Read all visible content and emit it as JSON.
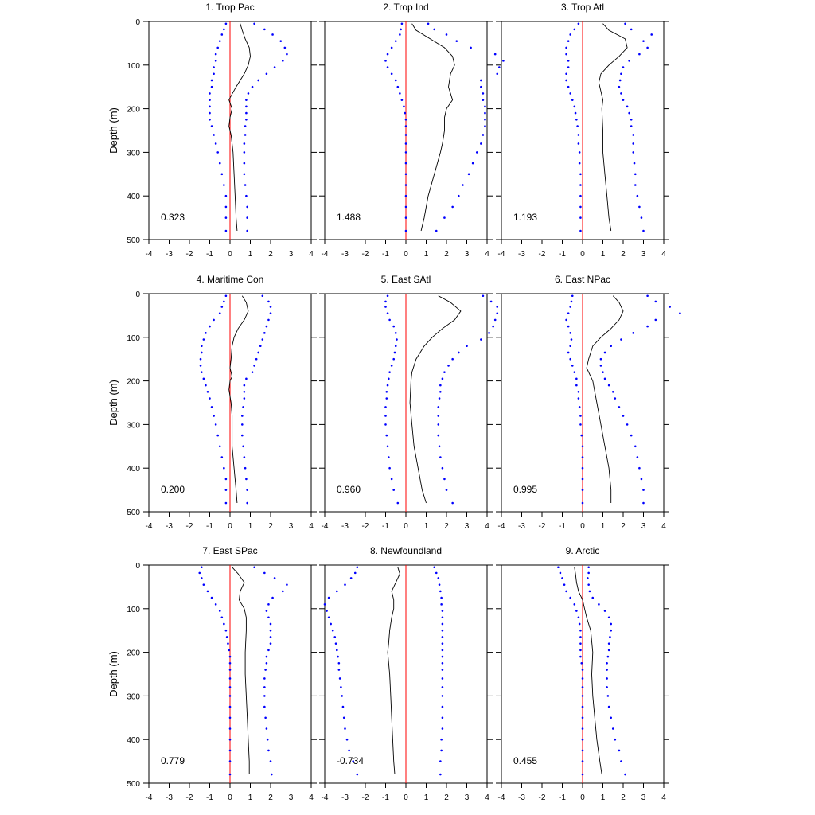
{
  "chart_data": {
    "type": "line",
    "ylabel": "Depth (m)",
    "xlim": [
      -4,
      4
    ],
    "ylim": [
      0,
      500
    ],
    "y_inverted": true,
    "xticks": [
      "-4",
      "-3",
      "-2",
      "-1",
      "0",
      "1",
      "2",
      "3",
      "4"
    ],
    "yticks": [
      "0",
      "100",
      "200",
      "300",
      "400",
      "500"
    ],
    "zero_line_color": "#ff0000",
    "line_color": "#000000",
    "dot_color": "#0000ff",
    "panels": [
      {
        "title": "1. Trop Pac",
        "stat": "0.323",
        "depth_line": [
          5,
          20,
          40,
          60,
          80,
          100,
          120,
          150,
          175,
          180,
          200,
          220,
          240,
          260,
          280,
          300,
          350,
          400,
          450,
          480
        ],
        "line": [
          0.5,
          0.6,
          0.75,
          0.95,
          1.0,
          0.9,
          0.7,
          0.3,
          0.0,
          -0.05,
          0.1,
          0.0,
          -0.05,
          0.05,
          0.1,
          0.15,
          0.2,
          0.25,
          0.3,
          0.35
        ],
        "depth_dots": [
          5,
          18,
          30,
          45,
          60,
          75,
          90,
          105,
          120,
          135,
          150,
          165,
          180,
          195,
          210,
          225,
          240,
          260,
          280,
          300,
          325,
          350,
          375,
          400,
          425,
          450,
          480
        ],
        "lower": [
          -0.2,
          -0.3,
          -0.4,
          -0.5,
          -0.6,
          -0.7,
          -0.7,
          -0.8,
          -0.8,
          -0.9,
          -0.9,
          -1.0,
          -1.0,
          -1.0,
          -1.0,
          -1.0,
          -0.9,
          -0.8,
          -0.7,
          -0.6,
          -0.5,
          -0.4,
          -0.3,
          -0.2,
          -0.2,
          -0.2,
          -0.2
        ],
        "upper": [
          1.2,
          1.7,
          2.1,
          2.5,
          2.7,
          2.8,
          2.6,
          2.2,
          1.8,
          1.4,
          1.1,
          0.9,
          0.8,
          0.8,
          0.8,
          0.8,
          0.75,
          0.75,
          0.7,
          0.7,
          0.7,
          0.7,
          0.75,
          0.8,
          0.85,
          0.85,
          0.85
        ]
      },
      {
        "title": "2. Trop Ind",
        "stat": "1.488",
        "depth_line": [
          5,
          20,
          40,
          60,
          80,
          100,
          120,
          150,
          180,
          200,
          220,
          250,
          280,
          300,
          350,
          400,
          450,
          480
        ],
        "line": [
          0.3,
          0.5,
          1.2,
          1.9,
          2.3,
          2.4,
          2.2,
          2.1,
          2.3,
          2.0,
          1.9,
          1.9,
          1.8,
          1.7,
          1.4,
          1.1,
          0.9,
          0.75
        ],
        "depth_dots": [
          5,
          18,
          30,
          45,
          60,
          75,
          90,
          105,
          120,
          135,
          150,
          165,
          180,
          195,
          210,
          225,
          240,
          260,
          280,
          300,
          325,
          350,
          375,
          400,
          425,
          450,
          480
        ],
        "lower": [
          -0.2,
          -0.25,
          -0.3,
          -0.5,
          -0.7,
          -0.9,
          -1.0,
          -0.9,
          -0.7,
          -0.5,
          -0.4,
          -0.3,
          -0.2,
          -0.1,
          -0.05,
          0.0,
          0.0,
          0.0,
          0.0,
          0.0,
          0.0,
          0.0,
          0.0,
          0.0,
          0.0,
          0.0,
          0.0
        ],
        "upper": [
          1.1,
          1.4,
          2.0,
          2.5,
          3.2,
          4.4,
          4.8,
          4.6,
          4.5,
          3.7,
          3.7,
          3.8,
          3.8,
          3.9,
          3.9,
          3.9,
          3.9,
          3.8,
          3.7,
          3.5,
          3.3,
          3.1,
          2.8,
          2.6,
          2.3,
          1.9,
          1.5
        ]
      },
      {
        "title": "3. Trop Atl",
        "stat": "1.193",
        "depth_line": [
          5,
          20,
          40,
          60,
          80,
          100,
          120,
          140,
          160,
          180,
          200,
          250,
          300,
          350,
          400,
          450,
          480
        ],
        "line": [
          1.0,
          1.3,
          2.1,
          2.2,
          1.8,
          1.3,
          0.9,
          0.8,
          0.9,
          1.0,
          0.95,
          1.0,
          1.0,
          1.1,
          1.2,
          1.3,
          1.4
        ],
        "depth_dots": [
          5,
          18,
          30,
          45,
          60,
          75,
          90,
          105,
          120,
          135,
          150,
          165,
          180,
          195,
          210,
          225,
          240,
          260,
          280,
          300,
          325,
          350,
          375,
          400,
          425,
          450,
          480
        ],
        "lower": [
          -0.2,
          -0.4,
          -0.6,
          -0.7,
          -0.8,
          -0.8,
          -0.7,
          -0.7,
          -0.8,
          -0.8,
          -0.7,
          -0.6,
          -0.5,
          -0.4,
          -0.35,
          -0.3,
          -0.25,
          -0.2,
          -0.2,
          -0.15,
          -0.15,
          -0.1,
          -0.1,
          -0.1,
          -0.1,
          -0.1,
          -0.1
        ],
        "upper": [
          2.1,
          2.4,
          3.4,
          3.0,
          3.2,
          2.8,
          2.3,
          2.0,
          1.9,
          1.85,
          1.8,
          1.9,
          2.0,
          2.2,
          2.3,
          2.4,
          2.4,
          2.5,
          2.5,
          2.5,
          2.55,
          2.6,
          2.6,
          2.7,
          2.8,
          2.9,
          3.0
        ]
      },
      {
        "title": "4. Maritime Con",
        "stat": "0.200",
        "depth_line": [
          5,
          20,
          40,
          60,
          80,
          100,
          120,
          150,
          170,
          190,
          200,
          220,
          250,
          280,
          300,
          350,
          400,
          450,
          480
        ],
        "line": [
          0.6,
          0.8,
          0.9,
          0.7,
          0.4,
          0.2,
          0.1,
          0.05,
          0.0,
          0.1,
          0.0,
          -0.05,
          0.05,
          0.1,
          0.1,
          0.1,
          0.2,
          0.3,
          0.35
        ],
        "depth_dots": [
          5,
          18,
          30,
          45,
          60,
          75,
          90,
          105,
          120,
          135,
          150,
          165,
          180,
          195,
          210,
          225,
          240,
          260,
          280,
          300,
          325,
          350,
          375,
          400,
          425,
          450,
          480
        ],
        "lower": [
          -0.2,
          -0.3,
          -0.4,
          -0.5,
          -0.8,
          -1.0,
          -1.2,
          -1.3,
          -1.4,
          -1.4,
          -1.45,
          -1.45,
          -1.4,
          -1.3,
          -1.2,
          -1.1,
          -1.0,
          -0.9,
          -0.8,
          -0.7,
          -0.6,
          -0.5,
          -0.4,
          -0.3,
          -0.2,
          -0.2,
          -0.2
        ],
        "upper": [
          1.6,
          1.9,
          2.0,
          2.0,
          1.9,
          1.8,
          1.7,
          1.6,
          1.5,
          1.4,
          1.3,
          1.2,
          1.1,
          0.8,
          0.7,
          0.7,
          0.7,
          0.65,
          0.6,
          0.6,
          0.6,
          0.65,
          0.7,
          0.75,
          0.8,
          0.85,
          0.85
        ]
      },
      {
        "title": "5. East SAtl",
        "stat": "0.960",
        "depth_line": [
          5,
          20,
          40,
          60,
          80,
          100,
          120,
          150,
          180,
          200,
          250,
          300,
          350,
          400,
          450,
          480
        ],
        "line": [
          1.6,
          2.2,
          2.7,
          2.4,
          1.8,
          1.3,
          0.9,
          0.5,
          0.3,
          0.25,
          0.2,
          0.3,
          0.4,
          0.6,
          0.8,
          1.0
        ],
        "depth_dots": [
          5,
          18,
          30,
          45,
          60,
          75,
          90,
          105,
          120,
          135,
          150,
          165,
          180,
          195,
          210,
          225,
          240,
          260,
          280,
          300,
          325,
          350,
          375,
          400,
          425,
          450,
          480
        ],
        "lower": [
          -0.9,
          -1.0,
          -1.0,
          -0.9,
          -0.8,
          -0.6,
          -0.5,
          -0.45,
          -0.5,
          -0.55,
          -0.6,
          -0.7,
          -0.8,
          -0.85,
          -0.9,
          -0.95,
          -0.95,
          -1.0,
          -1.0,
          -1.0,
          -0.95,
          -0.9,
          -0.85,
          -0.8,
          -0.7,
          -0.6,
          -0.4
        ],
        "upper": [
          3.8,
          4.2,
          4.5,
          4.5,
          4.4,
          4.3,
          4.1,
          3.7,
          3.0,
          2.6,
          2.3,
          2.1,
          1.9,
          1.8,
          1.7,
          1.7,
          1.65,
          1.6,
          1.6,
          1.6,
          1.6,
          1.65,
          1.7,
          1.8,
          1.9,
          2.0,
          2.3
        ]
      },
      {
        "title": "6. East NPac",
        "stat": "0.995",
        "depth_line": [
          5,
          20,
          40,
          60,
          80,
          100,
          120,
          150,
          170,
          190,
          200,
          250,
          300,
          350,
          400,
          450,
          480
        ],
        "line": [
          1.5,
          1.8,
          2.0,
          1.8,
          1.4,
          0.9,
          0.5,
          0.3,
          0.2,
          0.4,
          0.5,
          0.7,
          0.9,
          1.1,
          1.3,
          1.4,
          1.4
        ],
        "depth_dots": [
          5,
          18,
          30,
          45,
          60,
          75,
          90,
          105,
          120,
          135,
          150,
          165,
          180,
          195,
          210,
          225,
          240,
          260,
          280,
          300,
          325,
          350,
          375,
          400,
          425,
          450,
          480
        ],
        "lower": [
          -0.5,
          -0.55,
          -0.6,
          -0.7,
          -0.8,
          -0.7,
          -0.6,
          -0.55,
          -0.6,
          -0.7,
          -0.6,
          -0.5,
          -0.4,
          -0.3,
          -0.3,
          -0.2,
          -0.2,
          -0.15,
          -0.1,
          -0.1,
          -0.05,
          0.0,
          0.0,
          0.0,
          0.0,
          0.0,
          0.0
        ],
        "upper": [
          3.2,
          3.6,
          4.3,
          4.8,
          3.6,
          3.2,
          2.5,
          1.9,
          1.4,
          1.1,
          0.9,
          0.9,
          1.0,
          1.1,
          1.3,
          1.5,
          1.6,
          1.8,
          2.0,
          2.2,
          2.4,
          2.6,
          2.7,
          2.8,
          2.9,
          3.0,
          3.0
        ]
      },
      {
        "title": "7. East SPac",
        "stat": "0.779",
        "depth_line": [
          5,
          20,
          40,
          60,
          80,
          100,
          120,
          150,
          200,
          250,
          300,
          350,
          400,
          450,
          480
        ],
        "line": [
          0.1,
          0.4,
          0.7,
          0.5,
          0.45,
          0.7,
          0.8,
          0.8,
          0.75,
          0.75,
          0.8,
          0.85,
          0.9,
          0.95,
          0.95
        ],
        "depth_dots": [
          5,
          18,
          30,
          45,
          60,
          75,
          90,
          105,
          120,
          135,
          150,
          165,
          180,
          195,
          210,
          225,
          240,
          260,
          280,
          300,
          325,
          350,
          375,
          400,
          425,
          450,
          480
        ],
        "lower": [
          -1.4,
          -1.5,
          -1.4,
          -1.3,
          -1.1,
          -0.9,
          -0.7,
          -0.5,
          -0.4,
          -0.3,
          -0.2,
          -0.15,
          -0.1,
          -0.05,
          0.0,
          0.0,
          0.0,
          0.0,
          0.0,
          0.0,
          0.0,
          0.0,
          0.0,
          0.0,
          0.0,
          0.0,
          0.0
        ],
        "upper": [
          1.2,
          1.7,
          2.2,
          2.8,
          2.6,
          2.1,
          1.9,
          1.8,
          1.9,
          2.0,
          2.0,
          2.0,
          2.0,
          1.9,
          1.8,
          1.8,
          1.75,
          1.7,
          1.7,
          1.7,
          1.7,
          1.75,
          1.8,
          1.85,
          1.9,
          2.0,
          2.05
        ]
      },
      {
        "title": "8. Newfoundland",
        "stat": "-0.734",
        "depth_line": [
          5,
          20,
          40,
          60,
          80,
          100,
          120,
          150,
          180,
          200,
          250,
          300,
          350,
          400,
          450,
          480
        ],
        "line": [
          -0.4,
          -0.3,
          -0.5,
          -0.7,
          -0.6,
          -0.6,
          -0.7,
          -0.8,
          -0.85,
          -0.9,
          -0.8,
          -0.75,
          -0.7,
          -0.65,
          -0.6,
          -0.55
        ],
        "depth_dots": [
          5,
          18,
          30,
          45,
          60,
          75,
          90,
          105,
          120,
          135,
          150,
          165,
          180,
          195,
          210,
          225,
          240,
          260,
          280,
          300,
          325,
          350,
          375,
          400,
          425,
          450,
          480
        ],
        "lower": [
          -2.4,
          -2.5,
          -2.7,
          -3.0,
          -3.4,
          -3.8,
          -4.0,
          -3.9,
          -3.8,
          -3.7,
          -3.6,
          -3.5,
          -3.45,
          -3.4,
          -3.35,
          -3.3,
          -3.3,
          -3.25,
          -3.2,
          -3.15,
          -3.1,
          -3.05,
          -3.0,
          -2.9,
          -2.8,
          -2.6,
          -2.4
        ],
        "upper": [
          1.4,
          1.5,
          1.6,
          1.65,
          1.7,
          1.75,
          1.75,
          1.8,
          1.8,
          1.8,
          1.8,
          1.8,
          1.8,
          1.8,
          1.8,
          1.8,
          1.8,
          1.8,
          1.8,
          1.8,
          1.8,
          1.8,
          1.8,
          1.75,
          1.75,
          1.7,
          1.7
        ]
      },
      {
        "title": "9. Arctic",
        "stat": "0.455",
        "depth_line": [
          5,
          20,
          40,
          60,
          80,
          100,
          120,
          150,
          200,
          250,
          300,
          350,
          400,
          450,
          480
        ],
        "line": [
          -0.4,
          -0.35,
          -0.3,
          -0.2,
          0.0,
          0.1,
          0.2,
          0.4,
          0.5,
          0.45,
          0.5,
          0.6,
          0.7,
          0.85,
          0.95
        ],
        "depth_dots": [
          5,
          18,
          30,
          45,
          60,
          75,
          90,
          105,
          120,
          135,
          150,
          165,
          180,
          195,
          210,
          225,
          240,
          260,
          280,
          300,
          325,
          350,
          375,
          400,
          425,
          450,
          480
        ],
        "lower": [
          -1.2,
          -1.1,
          -1.0,
          -0.9,
          -0.8,
          -0.6,
          -0.4,
          -0.3,
          -0.2,
          -0.15,
          -0.1,
          -0.1,
          -0.1,
          -0.1,
          -0.1,
          -0.05,
          0.0,
          0.0,
          0.0,
          0.0,
          0.0,
          0.0,
          0.0,
          0.0,
          0.0,
          0.0,
          0.0
        ],
        "upper": [
          0.3,
          0.3,
          0.25,
          0.3,
          0.35,
          0.5,
          0.8,
          1.1,
          1.3,
          1.4,
          1.4,
          1.35,
          1.3,
          1.3,
          1.25,
          1.2,
          1.2,
          1.2,
          1.2,
          1.25,
          1.3,
          1.4,
          1.5,
          1.6,
          1.8,
          1.9,
          2.1
        ]
      }
    ]
  }
}
